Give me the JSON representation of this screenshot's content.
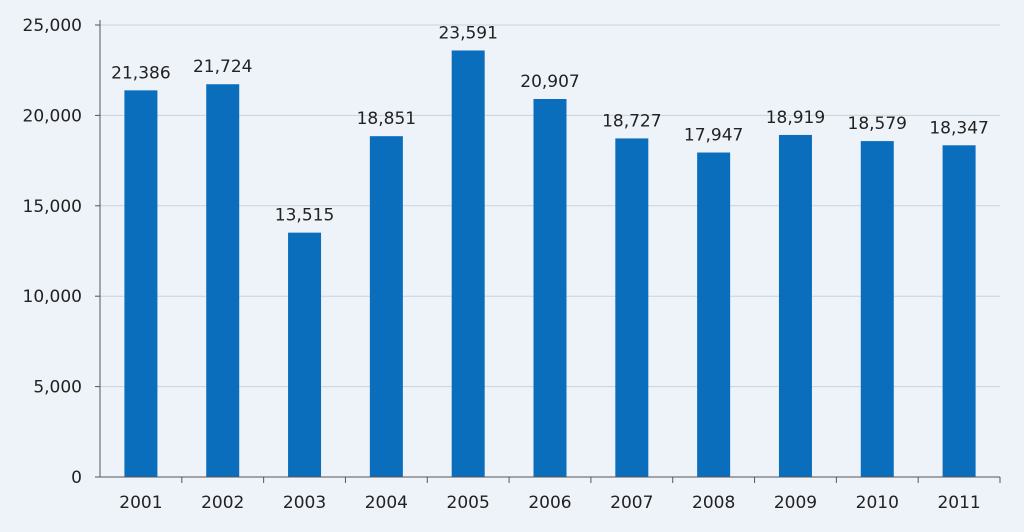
{
  "chart_data": {
    "type": "bar",
    "categories": [
      "2001",
      "2002",
      "2003",
      "2004",
      "2005",
      "2006",
      "2007",
      "2008",
      "2009",
      "2010",
      "2011"
    ],
    "values": [
      21386,
      21724,
      13515,
      18851,
      23591,
      20907,
      18727,
      17947,
      18919,
      18579,
      18347
    ],
    "value_labels": [
      "21,386",
      "21,724",
      "13,515",
      "18,851",
      "23,591",
      "20,907",
      "18,727",
      "17,947",
      "18,919",
      "18,579",
      "18,347"
    ],
    "title": "",
    "xlabel": "",
    "ylabel": "",
    "ylim": [
      0,
      25000
    ],
    "yticks": [
      0,
      5000,
      10000,
      15000,
      20000,
      25000
    ],
    "ytick_labels": [
      "0",
      "5,000",
      "10,000",
      "15,000",
      "20,000",
      "25,000"
    ],
    "grid": true,
    "legend": "none",
    "bar_color": "#0a6ebd",
    "grid_color": "#c9d3dc",
    "background_color": "#eef3f9"
  }
}
